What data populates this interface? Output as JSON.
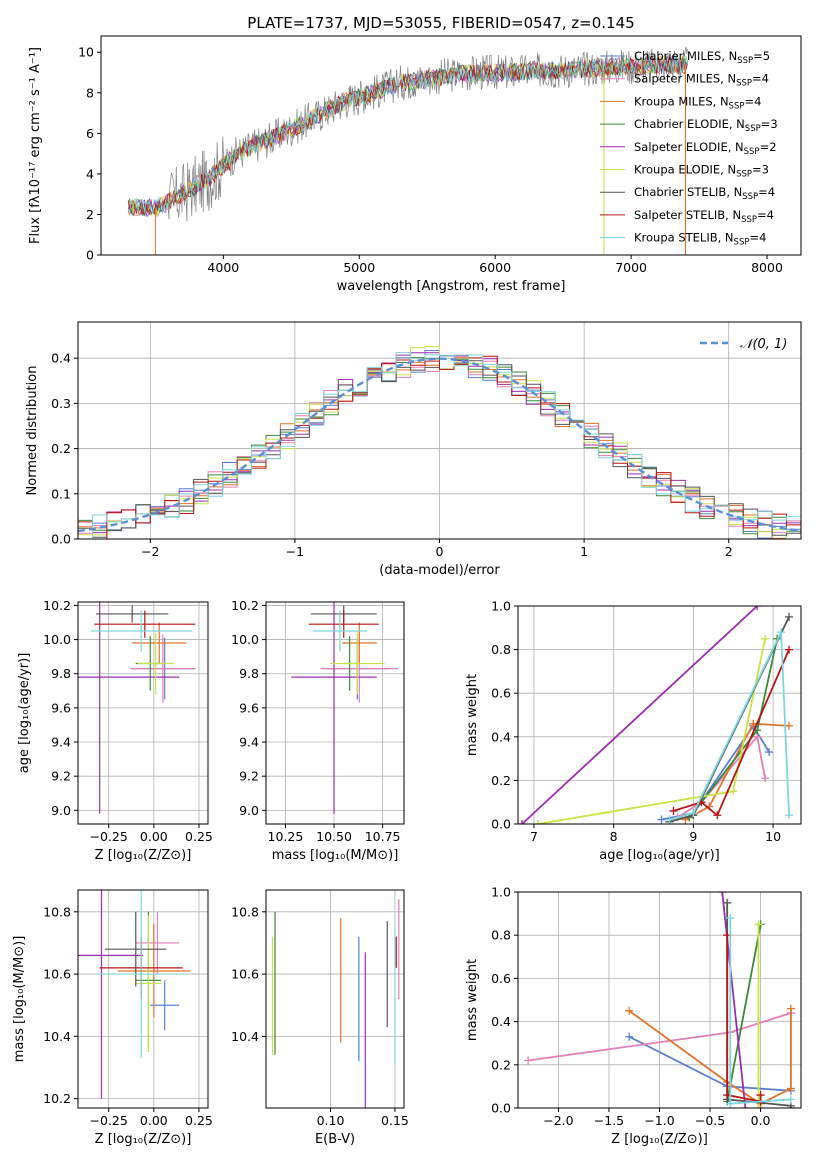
{
  "colors": {
    "chabrier_miles": "#5b7fcf",
    "salpeter_miles": "#e57fb8",
    "kroupa_miles": "#e0742c",
    "chabrier_elodie": "#3a8a3a",
    "salpeter_elodie": "#9b2fb0",
    "kroupa_elodie": "#c8e24a",
    "chabrier_stelib": "#555555",
    "salpeter_stelib": "#b81414",
    "kroupa_stelib": "#7dd6dd",
    "gaussian": "#5b8fd6",
    "grid": "#b0b0b0"
  },
  "chart_data": [
    {
      "id": "spectrum",
      "type": "line",
      "title": "PLATE=1737, MJD=53055, FIBERID=0547, z=0.145",
      "xlabel": "wavelength [Angstrom, rest frame]",
      "ylabel": "Flux [fλ10⁻¹⁷ erg cm⁻² s⁻¹ A⁻¹]",
      "xlim": [
        3100,
        8250
      ],
      "ylim": [
        0,
        10.8
      ],
      "xticks": [
        4000,
        5000,
        6000,
        7000,
        8000
      ],
      "yticks": [
        0,
        2,
        4,
        6,
        8,
        10
      ],
      "grid": false,
      "legend_position": "top-right",
      "legend": [
        {
          "label": "Chabrier MILES, N",
          "sub": "SSP",
          "suffix": "=5",
          "key": "chabrier_miles"
        },
        {
          "label": "Salpeter MILES, N",
          "sub": "SSP",
          "suffix": "=4",
          "key": "salpeter_miles"
        },
        {
          "label": "Kroupa MILES, N",
          "sub": "SSP",
          "suffix": "=4",
          "key": "kroupa_miles"
        },
        {
          "label": "Chabrier ELODIE, N",
          "sub": "SSP",
          "suffix": "=3",
          "key": "chabrier_elodie"
        },
        {
          "label": "Salpeter ELODIE, N",
          "sub": "SSP",
          "suffix": "=2",
          "key": "salpeter_elodie"
        },
        {
          "label": "Kroupa ELODIE, N",
          "sub": "SSP",
          "suffix": "=3",
          "key": "kroupa_elodie"
        },
        {
          "label": "Chabrier STELIB, N",
          "sub": "SSP",
          "suffix": "=4",
          "key": "chabrier_stelib"
        },
        {
          "label": "Salpeter STELIB, N",
          "sub": "SSP",
          "suffix": "=4",
          "key": "salpeter_stelib"
        },
        {
          "label": "Kroupa STELIB, N",
          "sub": "SSP",
          "suffix": "=4",
          "key": "kroupa_stelib"
        }
      ],
      "continuum": {
        "x": [
          3300,
          3500,
          3700,
          3900,
          4100,
          4300,
          4500,
          4700,
          4900,
          5100,
          5300,
          5500,
          5700,
          5900,
          6100,
          6300,
          6500,
          6700,
          6900,
          7100,
          7300,
          7400
        ],
        "y": [
          2.4,
          2.3,
          3.0,
          3.8,
          5.0,
          5.6,
          6.2,
          6.9,
          7.6,
          8.0,
          8.5,
          8.7,
          8.9,
          9.0,
          9.0,
          9.1,
          9.1,
          9.2,
          9.3,
          9.3,
          9.4,
          9.4
        ]
      }
    },
    {
      "id": "residuals",
      "type": "bar",
      "xlabel": "(data-model)/error",
      "ylabel": "Normed distribution",
      "xlim": [
        -2.5,
        2.5
      ],
      "ylim": [
        0,
        0.48
      ],
      "xticks": [
        -2,
        -1,
        0,
        1,
        2
      ],
      "yticks": [
        0.0,
        0.1,
        0.2,
        0.3,
        0.4
      ],
      "grid": true,
      "legend": [
        {
          "label": "𝒩(0, 1)",
          "key": "gaussian"
        }
      ],
      "bin_width": 0.1
    },
    {
      "id": "age_vs_Z",
      "type": "scatter",
      "xlabel": "Z [log₁₀(Z/Z⊙)]",
      "ylabel": "age  [log₁₀(age/yr)]",
      "xlim": [
        -0.42,
        0.3
      ],
      "ylim": [
        8.92,
        10.22
      ],
      "xticks": [
        -0.25,
        0.0,
        0.25
      ],
      "xticklabels": [
        "−0.25",
        "0.00",
        "0.25"
      ],
      "yticks": [
        9.0,
        9.2,
        9.4,
        9.6,
        9.8,
        10.0,
        10.2
      ],
      "grid": true,
      "points": [
        {
          "key": "chabrier_miles",
          "x": 0.06,
          "xerr": 0.17,
          "y": 9.83,
          "yerr": 0.18
        },
        {
          "key": "salpeter_miles",
          "x": 0.05,
          "xerr": 0.18,
          "y": 9.83,
          "yerr": 0.2
        },
        {
          "key": "kroupa_miles",
          "x": 0.03,
          "xerr": 0.15,
          "y": 9.98,
          "yerr": 0.12
        },
        {
          "key": "chabrier_elodie",
          "x": -0.02,
          "xerr": 0.08,
          "y": 9.86,
          "yerr": 0.16
        },
        {
          "key": "salpeter_elodie",
          "x": -0.3,
          "xerr": 0.44,
          "y": 9.78,
          "yerr": 0.8
        },
        {
          "key": "kroupa_elodie",
          "x": 0.01,
          "xerr": 0.1,
          "y": 9.86,
          "yerr": 0.18
        },
        {
          "key": "chabrier_stelib",
          "x": -0.12,
          "xerr": 0.2,
          "y": 10.15,
          "yerr": 0.05
        },
        {
          "key": "salpeter_stelib",
          "x": -0.05,
          "xerr": 0.28,
          "y": 10.09,
          "yerr": 0.08
        },
        {
          "key": "kroupa_stelib",
          "x": -0.07,
          "xerr": 0.28,
          "y": 10.05,
          "yerr": 0.12
        }
      ]
    },
    {
      "id": "age_vs_mass",
      "type": "scatter",
      "xlabel": "mass [log₁₀(M/M⊙)]",
      "ylabel": "",
      "xlim": [
        10.15,
        10.86
      ],
      "ylim": [
        8.92,
        10.22
      ],
      "xticks": [
        10.25,
        10.5,
        10.75
      ],
      "xticklabels": [
        "10.25",
        "10.50",
        "10.75"
      ],
      "yticks": [
        9.0,
        9.2,
        9.4,
        9.6,
        9.8,
        10.0,
        10.2
      ],
      "grid": true,
      "points": [
        {
          "key": "chabrier_miles",
          "x": 10.62,
          "xerr": 0.16,
          "y": 9.83,
          "yerr": 0.18
        },
        {
          "key": "salpeter_miles",
          "x": 10.63,
          "xerr": 0.2,
          "y": 9.83,
          "yerr": 0.2
        },
        {
          "key": "kroupa_miles",
          "x": 10.63,
          "xerr": 0.09,
          "y": 9.98,
          "yerr": 0.12
        },
        {
          "key": "chabrier_elodie",
          "x": 10.58,
          "xerr": 0.03,
          "y": 9.86,
          "yerr": 0.16
        },
        {
          "key": "salpeter_elodie",
          "x": 10.5,
          "xerr": 0.22,
          "y": 9.78,
          "yerr": 0.8
        },
        {
          "key": "kroupa_elodie",
          "x": 10.62,
          "xerr": 0.14,
          "y": 9.86,
          "yerr": 0.18
        },
        {
          "key": "chabrier_stelib",
          "x": 10.55,
          "xerr": 0.17,
          "y": 10.15,
          "yerr": 0.05
        },
        {
          "key": "salpeter_stelib",
          "x": 10.55,
          "xerr": 0.18,
          "y": 10.09,
          "yerr": 0.08
        },
        {
          "key": "kroupa_stelib",
          "x": 10.53,
          "xerr": 0.14,
          "y": 10.05,
          "yerr": 0.12
        }
      ]
    },
    {
      "id": "weight_vs_age",
      "type": "line",
      "xlabel": "age  [log₁₀(age/yr)]",
      "ylabel": "mass weight",
      "xlim": [
        6.8,
        10.35
      ],
      "ylim": [
        0,
        1
      ],
      "xticks": [
        7,
        8,
        9,
        10
      ],
      "yticks": [
        0.0,
        0.2,
        0.4,
        0.6,
        0.8,
        1.0
      ],
      "grid": true,
      "series": [
        {
          "key": "chabrier_miles",
          "x": [
            8.6,
            9.0,
            9.75,
            9.95
          ],
          "y": [
            0.02,
            0.05,
            0.45,
            0.33
          ]
        },
        {
          "key": "salpeter_miles",
          "x": [
            8.8,
            9.1,
            9.8,
            9.9
          ],
          "y": [
            0.03,
            0.1,
            0.4,
            0.21
          ]
        },
        {
          "key": "kroupa_miles",
          "x": [
            8.9,
            9.2,
            9.75,
            10.2
          ],
          "y": [
            0.02,
            0.08,
            0.46,
            0.45
          ]
        },
        {
          "key": "chabrier_elodie",
          "x": [
            8.95,
            9.8,
            10.05
          ],
          "y": [
            0.03,
            0.43,
            0.85
          ]
        },
        {
          "key": "salpeter_elodie",
          "x": [
            6.85,
            9.8
          ],
          "y": [
            0.0,
            1.0
          ]
        },
        {
          "key": "kroupa_elodie",
          "x": [
            7.05,
            9.5,
            9.9
          ],
          "y": [
            0.0,
            0.15,
            0.85
          ]
        },
        {
          "key": "chabrier_stelib",
          "x": [
            8.7,
            9.0,
            10.2
          ],
          "y": [
            0.01,
            0.04,
            0.95
          ]
        },
        {
          "key": "salpeter_stelib",
          "x": [
            8.75,
            9.1,
            9.3,
            10.2
          ],
          "y": [
            0.06,
            0.1,
            0.04,
            0.8
          ]
        },
        {
          "key": "kroupa_stelib",
          "x": [
            8.7,
            9.0,
            10.1,
            10.2
          ],
          "y": [
            0.02,
            0.05,
            0.88,
            0.04
          ]
        }
      ]
    },
    {
      "id": "mass_vs_Z",
      "type": "scatter",
      "xlabel": "Z [log₁₀(Z/Z⊙)]",
      "ylabel": "mass [log₁₀(M/M⊙)]",
      "xlim": [
        -0.42,
        0.3
      ],
      "ylim": [
        10.17,
        10.87
      ],
      "xticks": [
        -0.25,
        0.0,
        0.25
      ],
      "xticklabels": [
        "−0.25",
        "0.00",
        "0.25"
      ],
      "yticks": [
        10.2,
        10.4,
        10.6,
        10.8
      ],
      "grid": true,
      "points": [
        {
          "key": "chabrier_miles",
          "x": 0.06,
          "xerr": 0.08,
          "y": 10.5,
          "yerr": 0.08
        },
        {
          "key": "salpeter_miles",
          "x": 0.02,
          "xerr": 0.12,
          "y": 10.7,
          "yerr": 0.1
        },
        {
          "key": "kroupa_miles",
          "x": 0.0,
          "xerr": 0.2,
          "y": 10.61,
          "yerr": 0.15
        },
        {
          "key": "chabrier_elodie",
          "x": -0.03,
          "xerr": 0.07,
          "y": 10.58,
          "yerr": 0.22
        },
        {
          "key": "salpeter_elodie",
          "x": -0.29,
          "xerr": 0.23,
          "y": 10.66,
          "yerr": 0.46
        },
        {
          "key": "kroupa_elodie",
          "x": -0.03,
          "xerr": 0.07,
          "y": 10.57,
          "yerr": 0.22
        },
        {
          "key": "chabrier_stelib",
          "x": -0.1,
          "xerr": 0.17,
          "y": 10.68,
          "yerr": 0.12
        },
        {
          "key": "salpeter_stelib",
          "x": -0.07,
          "xerr": 0.23,
          "y": 10.62,
          "yerr": 0.1
        },
        {
          "key": "kroupa_stelib",
          "x": -0.07,
          "xerr": 0.25,
          "y": 10.6,
          "yerr": 0.27
        }
      ]
    },
    {
      "id": "mass_vs_ebv",
      "type": "scatter",
      "xlabel": "E(B-V)",
      "ylabel": "",
      "xlim": [
        0.05,
        0.157
      ],
      "ylim": [
        10.17,
        10.87
      ],
      "xticks": [
        0.1,
        0.15
      ],
      "xticklabels": [
        "0.10",
        "0.15"
      ],
      "yticks": [
        10.4,
        10.6,
        10.8
      ],
      "grid": true,
      "points": [
        {
          "key": "chabrier_miles",
          "x": 0.122,
          "xerr": 0,
          "y": 10.52,
          "yerr": 0.2
        },
        {
          "key": "salpeter_miles",
          "x": 0.153,
          "xerr": 0,
          "y": 10.68,
          "yerr": 0.16
        },
        {
          "key": "kroupa_miles",
          "x": 0.108,
          "xerr": 0,
          "y": 10.58,
          "yerr": 0.2
        },
        {
          "key": "chabrier_elodie",
          "x": 0.057,
          "xerr": 0,
          "y": 10.57,
          "yerr": 0.23
        },
        {
          "key": "salpeter_elodie",
          "x": 0.127,
          "xerr": 0,
          "y": 10.42,
          "yerr": 0.25
        },
        {
          "key": "kroupa_elodie",
          "x": 0.055,
          "xerr": 0,
          "y": 10.53,
          "yerr": 0.19
        },
        {
          "key": "chabrier_stelib",
          "x": 0.144,
          "xerr": 0,
          "y": 10.6,
          "yerr": 0.17
        },
        {
          "key": "salpeter_stelib",
          "x": 0.151,
          "xerr": 0,
          "y": 10.67,
          "yerr": 0.05
        },
        {
          "key": "kroupa_stelib",
          "x": 0.15,
          "xerr": 0,
          "y": 10.53,
          "yerr": 0.22
        }
      ]
    },
    {
      "id": "weight_vs_Z",
      "type": "line",
      "xlabel": "Z [log₁₀(Z/Z⊙)]",
      "ylabel": "mass weight",
      "xlim": [
        -2.4,
        0.4
      ],
      "ylim": [
        0,
        1
      ],
      "xticks": [
        -2.0,
        -1.5,
        -1.0,
        -0.5,
        0.0
      ],
      "xticklabels": [
        "−2.0",
        "−1.5",
        "−1.0",
        "−0.5",
        "0.0"
      ],
      "yticks": [
        0.0,
        0.2,
        0.4,
        0.6,
        0.8,
        1.0
      ],
      "grid": true,
      "series": [
        {
          "key": "chabrier_miles",
          "x": [
            -1.3,
            -0.33,
            0.3
          ],
          "y": [
            0.33,
            0.1,
            0.08
          ]
        },
        {
          "key": "salpeter_miles",
          "x": [
            -2.3,
            -0.3,
            0.3
          ],
          "y": [
            0.22,
            0.35,
            0.44
          ]
        },
        {
          "key": "kroupa_miles",
          "x": [
            -1.3,
            -0.33,
            0.0,
            0.3,
            0.3
          ],
          "y": [
            0.45,
            0.12,
            0.02,
            0.09,
            0.46
          ]
        },
        {
          "key": "chabrier_elodie",
          "x": [
            -0.33,
            0.0
          ],
          "y": [
            0.03,
            0.85
          ]
        },
        {
          "key": "salpeter_elodie",
          "x": [
            -0.38,
            -0.15
          ],
          "y": [
            1.0,
            0.0
          ]
        },
        {
          "key": "kroupa_elodie",
          "x": [
            -0.02,
            -0.02
          ],
          "y": [
            0.0,
            0.85
          ]
        },
        {
          "key": "chabrier_stelib",
          "x": [
            -0.33,
            -0.33,
            0.3,
            0.3
          ],
          "y": [
            0.95,
            0.04,
            0.01,
            0.0
          ]
        },
        {
          "key": "salpeter_stelib",
          "x": [
            -0.33,
            -0.33,
            0.0,
            0.0
          ],
          "y": [
            0.8,
            0.06,
            0.03,
            0.06
          ]
        },
        {
          "key": "kroupa_stelib",
          "x": [
            -0.3,
            -0.3,
            0.3
          ],
          "y": [
            0.88,
            0.02,
            0.04
          ]
        }
      ]
    }
  ]
}
